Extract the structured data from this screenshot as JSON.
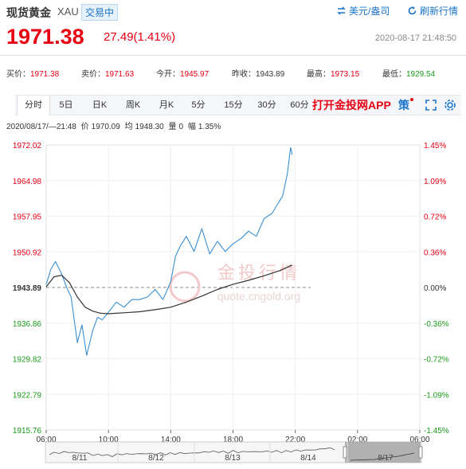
{
  "header": {
    "title": "现货黄金",
    "symbol": "XAU",
    "status": "交易中",
    "unit_label": "美元/盎司",
    "refresh_label": "刷新行情",
    "price": "1971.38",
    "change": "27.49(1.41%)",
    "timestamp": "2020-08-17 21:48:50"
  },
  "stats": [
    {
      "label": "买价：",
      "value": "1971.38",
      "tone": "up"
    },
    {
      "label": "卖价：",
      "value": "1971.63",
      "tone": "up"
    },
    {
      "label": "今开：",
      "value": "1945.97",
      "tone": "up"
    },
    {
      "label": "昨收：",
      "value": "1943.89",
      "tone": "nt"
    },
    {
      "label": "最高：",
      "value": "1973.15",
      "tone": "up"
    },
    {
      "label": "最低：",
      "value": "1929.54",
      "tone": "dn"
    }
  ],
  "tabs": [
    "分时",
    "5日",
    "日K",
    "周K",
    "月K",
    "5分",
    "15分",
    "30分",
    "60分"
  ],
  "active_tab": "分时",
  "app_link": "打开金投网APP",
  "strategy_label": "策",
  "info_line": {
    "datetime": "2020/08/17/—21:48",
    "price_label": "价",
    "price_value": "1970.09",
    "avg_label": "均",
    "avg_value": "1948.30",
    "vol_label": "量",
    "vol_value": "0",
    "amp_label": "幅",
    "amp_value": "1.35%"
  },
  "watermark": {
    "cn": "金投行情",
    "url": "quote.cngold.org"
  },
  "colors": {
    "up": "#e60012",
    "down": "#1a9c1a",
    "accent": "#1a73c9",
    "price_line": "#3a8fd0",
    "avg_line": "#333333"
  },
  "chart_data": {
    "type": "line",
    "reference_price": 1943.89,
    "ylim": [
      1915.76,
      1972.02
    ],
    "y_ticks": [
      "1972.02",
      "1964.98",
      "1957.95",
      "1950.92",
      "1943.89",
      "1936.86",
      "1929.82",
      "1922.79",
      "1915.76"
    ],
    "pct_ticks": [
      "1.45%",
      "1.09%",
      "0.72%",
      "0.36%",
      "0.00%",
      "-0.36%",
      "-0.72%",
      "-1.09%",
      "-1.45%"
    ],
    "x_ticks": [
      "06:00",
      "10:00",
      "14:00",
      "18:00",
      "22:00",
      "02:00",
      "06:00"
    ],
    "x_range_hours": [
      6,
      30
    ],
    "series": [
      {
        "role": "price",
        "x": [
          6.0,
          6.3,
          6.6,
          7.0,
          7.3,
          7.6,
          8.0,
          8.3,
          8.6,
          9.0,
          9.3,
          9.6,
          10.0,
          10.5,
          11.0,
          11.5,
          12.0,
          12.5,
          13.0,
          13.5,
          14.0,
          14.3,
          14.6,
          15.0,
          15.5,
          16.0,
          16.5,
          17.0,
          17.5,
          18.0,
          18.5,
          19.0,
          19.5,
          20.0,
          20.5,
          20.8,
          21.2,
          21.5,
          21.7,
          21.8
        ],
        "y": [
          1944.5,
          1947.5,
          1949.0,
          1946.5,
          1944.0,
          1942.0,
          1933.0,
          1936.5,
          1930.5,
          1935.5,
          1938.0,
          1937.5,
          1939.0,
          1941.0,
          1940.0,
          1941.5,
          1941.5,
          1942.0,
          1943.5,
          1941.5,
          1945.0,
          1950.0,
          1952.0,
          1954.0,
          1951.0,
          1955.5,
          1950.5,
          1953.0,
          1951.0,
          1952.5,
          1953.5,
          1955.0,
          1954.0,
          1957.5,
          1958.5,
          1960.0,
          1962.0,
          1966.5,
          1971.5,
          1970.09
        ]
      },
      {
        "role": "average",
        "x": [
          6.0,
          6.5,
          7.0,
          7.5,
          8.0,
          8.5,
          9.0,
          9.5,
          10.0,
          10.5,
          11.0,
          12.0,
          13.0,
          14.0,
          15.0,
          16.0,
          17.0,
          18.0,
          19.0,
          20.0,
          21.0,
          21.8
        ],
        "y": [
          1944.0,
          1946.0,
          1946.3,
          1944.8,
          1942.0,
          1940.0,
          1939.2,
          1938.8,
          1938.7,
          1938.8,
          1938.9,
          1939.1,
          1939.5,
          1940.0,
          1941.0,
          1942.2,
          1943.5,
          1944.5,
          1945.3,
          1946.2,
          1947.2,
          1948.3
        ]
      }
    ],
    "navigator_labels": [
      "8/11",
      "8/12",
      "8/13",
      "8/14",
      "8/17"
    ]
  }
}
